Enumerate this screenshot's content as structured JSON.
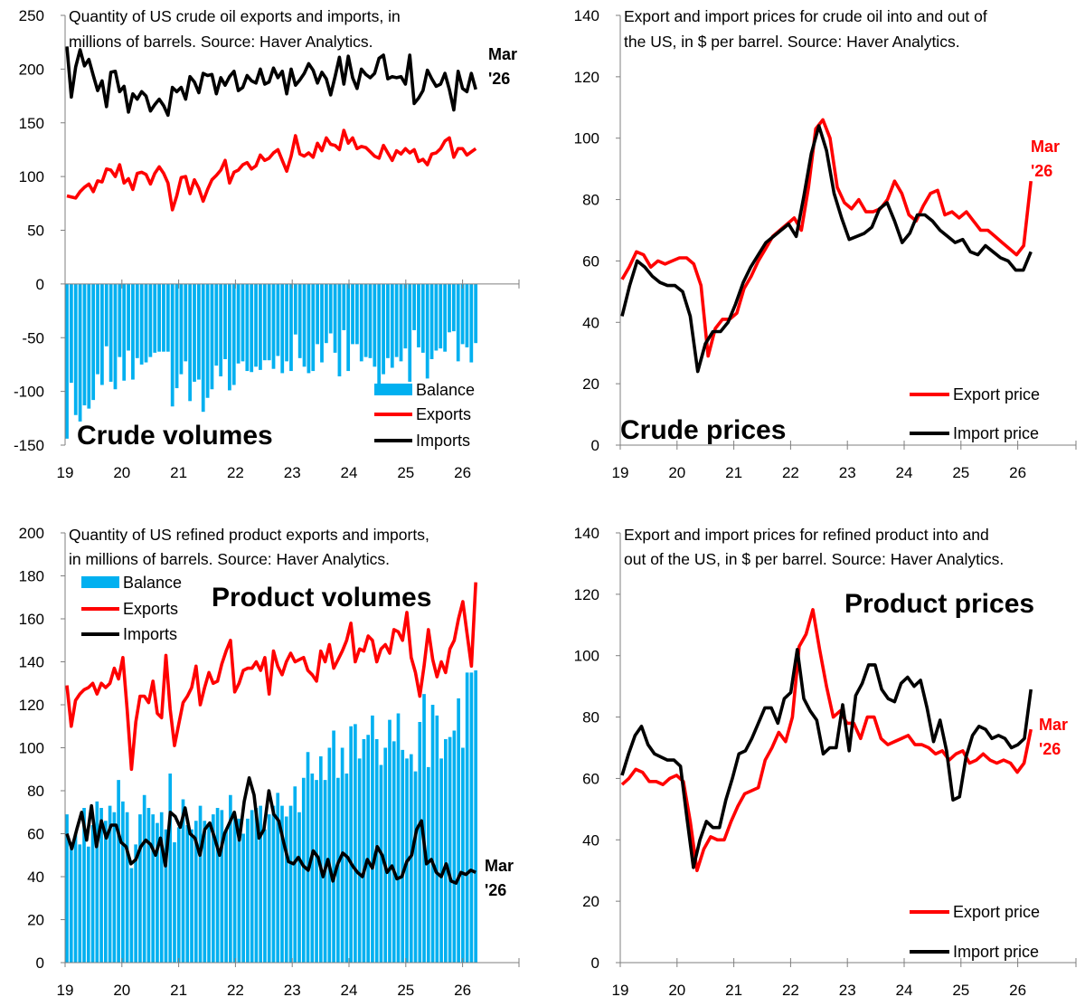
{
  "colors": {
    "balance": "#00B0F0",
    "exports": "#FF0000",
    "imports": "#000000",
    "axis": "#7f7f7f"
  },
  "chart_data": [
    {
      "id": "crude-volumes",
      "type": "bar+line",
      "title": "Crude volumes",
      "note": [
        "Quantity of US crude oil exports and imports, in",
        "millions of barrels. Source: Haver Analytics."
      ],
      "end_label": [
        "Mar",
        "'26"
      ],
      "legend": [
        "Balance",
        "Exports",
        "Imports"
      ],
      "x_ticks": [
        "19",
        "20",
        "21",
        "22",
        "23",
        "24",
        "25",
        "26"
      ],
      "ylim": [
        -150,
        250
      ],
      "y_ticks": [
        -150,
        -100,
        -50,
        0,
        50,
        100,
        150,
        200,
        250
      ],
      "series": [
        {
          "name": "Exports",
          "kind": "line",
          "values": [
            82,
            81,
            80,
            86,
            90,
            93,
            86,
            96,
            95,
            107,
            106,
            100,
            111,
            94,
            98,
            88,
            103,
            104,
            102,
            93,
            103,
            109,
            103,
            94,
            69,
            82,
            99,
            100,
            84,
            97,
            89,
            77,
            88,
            97,
            101,
            106,
            115,
            94,
            104,
            106,
            111,
            113,
            107,
            110,
            120,
            115,
            117,
            122,
            125,
            115,
            105,
            119,
            138,
            121,
            119,
            122,
            118,
            131,
            124,
            136,
            130,
            129,
            125,
            143,
            131,
            136,
            126,
            128,
            127,
            123,
            119,
            117,
            129,
            122,
            115,
            124,
            121,
            126,
            122,
            125,
            114,
            116,
            111,
            121,
            122,
            126,
            133,
            136,
            118,
            126,
            126,
            120,
            123,
            126
          ]
        },
        {
          "name": "Imports",
          "kind": "line",
          "values": [
            221,
            174,
            202,
            218,
            203,
            209,
            194,
            180,
            189,
            165,
            197,
            198,
            179,
            184,
            160,
            177,
            172,
            179,
            175,
            161,
            167,
            172,
            166,
            157,
            183,
            179,
            183,
            172,
            193,
            188,
            178,
            196,
            194,
            195,
            177,
            192,
            185,
            193,
            198,
            180,
            183,
            194,
            189,
            187,
            200,
            186,
            188,
            201,
            192,
            198,
            177,
            200,
            185,
            190,
            196,
            205,
            199,
            187,
            197,
            191,
            176,
            193,
            211,
            186,
            212,
            192,
            182,
            200,
            195,
            192,
            196,
            210,
            213,
            191,
            193,
            192,
            193,
            186,
            213,
            168,
            173,
            180,
            199,
            191,
            184,
            186,
            196,
            181,
            162,
            198,
            182,
            179,
            196,
            181
          ]
        },
        {
          "name": "Balance",
          "kind": "bar",
          "values": [
            -144,
            -92,
            -122,
            -128,
            -113,
            -116,
            -108,
            -84,
            -94,
            -58,
            -91,
            -98,
            -68,
            -90,
            -62,
            -89,
            -69,
            -75,
            -73,
            -68,
            -64,
            -63,
            -63,
            -63,
            -114,
            -97,
            -84,
            -72,
            -109,
            -91,
            -89,
            -119,
            -106,
            -98,
            -76,
            -86,
            -70,
            -99,
            -94,
            -74,
            -72,
            -81,
            -82,
            -77,
            -80,
            -71,
            -71,
            -79,
            -67,
            -83,
            -72,
            -81,
            -47,
            -69,
            -77,
            -83,
            -81,
            -56,
            -73,
            -55,
            -46,
            -64,
            -86,
            -43,
            -81,
            -56,
            -56,
            -72,
            -68,
            -69,
            -77,
            -93,
            -84,
            -69,
            -78,
            -68,
            -72,
            -60,
            -91,
            -43,
            -59,
            -64,
            -88,
            -70,
            -62,
            -60,
            -63,
            -45,
            -44,
            -72,
            -56,
            -59,
            -73,
            -55
          ]
        }
      ]
    },
    {
      "id": "crude-prices",
      "type": "line",
      "title": "Crude prices",
      "note": [
        "Export and import prices for crude oil into and out of",
        "the US, in $ per barrel. Source: Haver Analytics."
      ],
      "end_label": [
        "Mar",
        "'26"
      ],
      "legend": [
        "Export price",
        "Import price"
      ],
      "x_ticks": [
        "19",
        "20",
        "21",
        "22",
        "23",
        "24",
        "25",
        "26"
      ],
      "ylim": [
        0,
        140
      ],
      "y_ticks": [
        0,
        20,
        40,
        60,
        80,
        100,
        120,
        140
      ],
      "series": [
        {
          "name": "Export price",
          "values": [
            54,
            58,
            63,
            62,
            58,
            60,
            59,
            60,
            61,
            61,
            59,
            52,
            29,
            38,
            41,
            41,
            43,
            51,
            55,
            60,
            64,
            68,
            70,
            72,
            74,
            70,
            84,
            103,
            106,
            100,
            84,
            79,
            77,
            80,
            76,
            76,
            77,
            80,
            86,
            82,
            75,
            73,
            78,
            82,
            83,
            75,
            76,
            74,
            76,
            73,
            70,
            70,
            68,
            66,
            64,
            62,
            65,
            86
          ]
        },
        {
          "name": "Import price",
          "values": [
            42,
            52,
            60,
            58,
            55,
            53,
            52,
            52,
            50,
            42,
            24,
            33,
            37,
            37,
            40,
            46,
            53,
            58,
            62,
            66,
            68,
            70,
            72,
            68,
            81,
            95,
            104,
            96,
            82,
            74,
            67,
            68,
            69,
            71,
            77,
            79,
            73,
            66,
            69,
            75,
            75,
            73,
            70,
            68,
            66,
            67,
            63,
            62,
            65,
            63,
            61,
            60,
            57,
            57,
            63
          ]
        }
      ]
    },
    {
      "id": "product-volumes",
      "type": "bar+line",
      "title": "Product volumes",
      "note": [
        "Quantity of US refined product exports and imports,",
        "in millions of barrels. Source: Haver Analytics."
      ],
      "end_label": [
        "Mar",
        "'26"
      ],
      "legend": [
        "Balance",
        "Exports",
        "Imports"
      ],
      "x_ticks": [
        "19",
        "20",
        "21",
        "22",
        "23",
        "24",
        "25",
        "26"
      ],
      "ylim": [
        0,
        200
      ],
      "y_ticks": [
        0,
        20,
        40,
        60,
        80,
        100,
        120,
        140,
        160,
        180,
        200
      ],
      "series": [
        {
          "name": "Exports",
          "kind": "line",
          "values": [
            129,
            110,
            122,
            125,
            127,
            128,
            130,
            125,
            130,
            128,
            130,
            137,
            132,
            142,
            118,
            90,
            112,
            124,
            124,
            121,
            131,
            116,
            114,
            143,
            118,
            101,
            111,
            121,
            124,
            128,
            138,
            120,
            128,
            135,
            130,
            131,
            139,
            145,
            150,
            126,
            130,
            136,
            137,
            137,
            140,
            136,
            142,
            125,
            145,
            138,
            134,
            140,
            144,
            140,
            141,
            142,
            136,
            134,
            131,
            145,
            140,
            148,
            137,
            141,
            145,
            150,
            158,
            140,
            146,
            145,
            152,
            150,
            140,
            146,
            148,
            144,
            155,
            154,
            150,
            163,
            142,
            135,
            124,
            138,
            155,
            141,
            133,
            140,
            135,
            146,
            150,
            160,
            168,
            153,
            138,
            177
          ]
        },
        {
          "name": "Imports",
          "kind": "line",
          "values": [
            60,
            53,
            62,
            70,
            57,
            73,
            54,
            66,
            58,
            64,
            64,
            56,
            54,
            46,
            48,
            54,
            57,
            55,
            50,
            58,
            45,
            70,
            68,
            63,
            72,
            60,
            58,
            50,
            62,
            65,
            58,
            50,
            60,
            65,
            70,
            57,
            75,
            86,
            78,
            58,
            62,
            80,
            69,
            66,
            56,
            47,
            46,
            49,
            45,
            43,
            52,
            49,
            40,
            48,
            38,
            46,
            51,
            49,
            45,
            42,
            40,
            48,
            44,
            54,
            50,
            42,
            45,
            39,
            40,
            47,
            50,
            62,
            66,
            46,
            48,
            42,
            40,
            46,
            38,
            37,
            42,
            41,
            43,
            42
          ]
        },
        {
          "name": "Balance",
          "kind": "bar",
          "values": [
            69,
            56,
            60,
            55,
            72,
            54,
            64,
            75,
            72,
            66,
            73,
            70,
            85,
            75,
            70,
            44,
            55,
            69,
            78,
            72,
            69,
            65,
            70,
            62,
            88,
            56,
            63,
            76,
            64,
            62,
            66,
            73,
            66,
            64,
            69,
            72,
            71,
            62,
            78,
            69,
            67,
            60,
            67,
            71,
            72,
            73,
            62,
            69,
            73,
            79,
            73,
            68,
            73,
            82,
            70,
            86,
            98,
            88,
            85,
            96,
            85,
            100,
            108,
            86,
            100,
            88,
            110,
            111,
            95,
            104,
            106,
            115,
            104,
            92,
            100,
            113,
            103,
            116,
            99,
            95,
            97,
            89,
            112,
            125,
            91,
            120,
            115,
            95,
            104,
            105,
            108,
            123,
            100,
            135,
            135,
            136
          ]
        }
      ]
    },
    {
      "id": "product-prices",
      "type": "line",
      "title": "Product prices",
      "note": [
        "Export and import prices for refined product into and",
        "out of the US, in $ per barrel. Source: Haver Analytics."
      ],
      "end_label": [
        "Mar",
        "'26"
      ],
      "legend": [
        "Export price",
        "Import price"
      ],
      "x_ticks": [
        "19",
        "20",
        "21",
        "22",
        "23",
        "24",
        "25",
        "26"
      ],
      "ylim": [
        0,
        140
      ],
      "y_ticks": [
        0,
        20,
        40,
        60,
        80,
        100,
        120,
        140
      ],
      "series": [
        {
          "name": "Export price",
          "values": [
            58,
            60,
            63,
            62,
            59,
            59,
            58,
            60,
            61,
            59,
            46,
            30,
            37,
            41,
            40,
            40,
            46,
            51,
            55,
            56,
            57,
            66,
            70,
            75,
            72,
            80,
            103,
            107,
            115,
            102,
            90,
            80,
            82,
            78,
            78,
            73,
            80,
            80,
            73,
            71,
            72,
            73,
            74,
            71,
            71,
            70,
            68,
            69,
            66,
            68,
            69,
            65,
            66,
            68,
            66,
            65,
            66,
            65,
            62,
            65,
            76
          ]
        },
        {
          "name": "Import price",
          "values": [
            61,
            68,
            74,
            77,
            71,
            68,
            67,
            66,
            66,
            64,
            47,
            31,
            40,
            46,
            44,
            44,
            53,
            60,
            68,
            69,
            73,
            78,
            83,
            83,
            78,
            86,
            88,
            102,
            86,
            82,
            79,
            68,
            70,
            70,
            84,
            69,
            87,
            91,
            97,
            97,
            89,
            86,
            85,
            91,
            93,
            90,
            92,
            83,
            72,
            79,
            69,
            53,
            54,
            67,
            74,
            77,
            76,
            73,
            74,
            73,
            70,
            71,
            73,
            89
          ]
        }
      ]
    }
  ]
}
